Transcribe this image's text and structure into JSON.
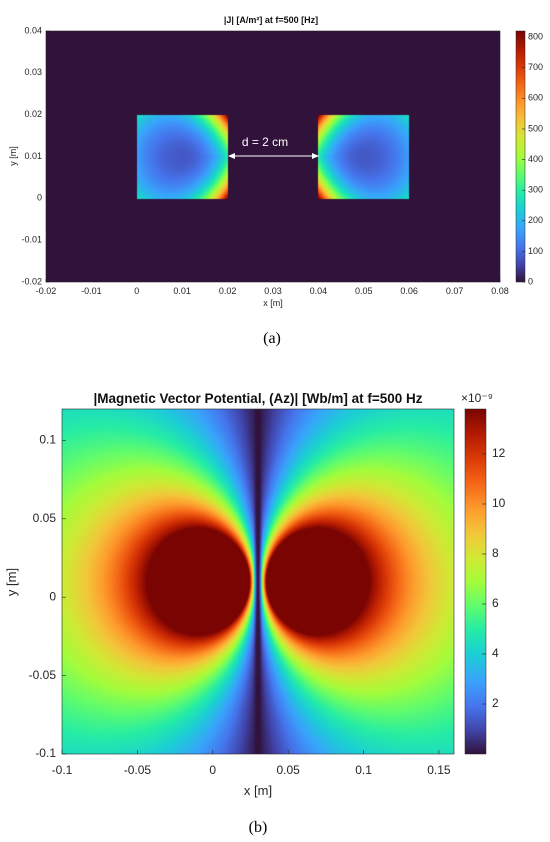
{
  "chart_data": [
    {
      "type": "heatmap",
      "panel_label": "(a)",
      "title": "|J| [A/m²] at f=500 [Hz]",
      "xlabel": "x [m]",
      "ylabel": "y [m]",
      "xlim": [
        -0.02,
        0.08
      ],
      "ylim": [
        -0.02,
        0.04
      ],
      "xticks": [
        "-0.02",
        "-0.01",
        "0",
        "0.01",
        "0.02",
        "0.03",
        "0.04",
        "0.05",
        "0.06",
        "0.07",
        "0.08"
      ],
      "yticks": [
        "-0.02",
        "-0.01",
        "0",
        "0.01",
        "0.02",
        "0.03",
        "0.04"
      ],
      "colorbar": {
        "min": 0,
        "max": 820,
        "ticks": [
          "0",
          "100",
          "200",
          "300",
          "400",
          "500",
          "600",
          "700",
          "800"
        ]
      },
      "conductors": [
        {
          "x": [
            0,
            0.02
          ],
          "y": [
            0,
            0.02
          ],
          "min_value": 80,
          "max_value": 820,
          "peak_side": "right"
        },
        {
          "x": [
            0.04,
            0.06
          ],
          "y": [
            0,
            0.02
          ],
          "min_value": 80,
          "max_value": 820,
          "peak_side": "left"
        }
      ],
      "annotation": "d = 2 cm",
      "background_value": 0
    },
    {
      "type": "heatmap",
      "panel_label": "(b)",
      "title": "|Magnetic Vector Potential, (Az)| [Wb/m] at f=500 Hz",
      "xlabel": "x [m]",
      "ylabel": "y [m]",
      "xlim": [
        -0.1,
        0.16
      ],
      "ylim": [
        -0.1,
        0.12
      ],
      "xticks": [
        "-0.1",
        "-0.05",
        "0",
        "0.05",
        "0.1",
        "0.15"
      ],
      "yticks": [
        "-0.1",
        "-0.05",
        "0",
        "0.05",
        "0.1"
      ],
      "colorbar": {
        "min": 0,
        "max": 13.8,
        "exponent": "×10⁻⁹",
        "ticks": [
          "2",
          "4",
          "6",
          "8",
          "10",
          "12"
        ]
      },
      "peak_value": 13.8,
      "peaks_at": [
        [
          0.01,
          0.01
        ],
        [
          0.05,
          0.01
        ]
      ],
      "zero_line_x": 0.03
    }
  ]
}
